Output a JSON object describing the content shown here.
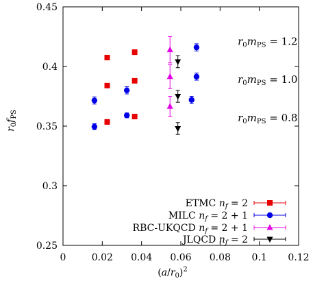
{
  "chart_data": {
    "type": "scatter",
    "xlabel": "(a/r₀)²",
    "ylabel": "r₀f_PS",
    "xlim": [
      0,
      0.12
    ],
    "ylim": [
      0.25,
      0.45
    ],
    "x_ticks": [
      0,
      0.02,
      0.04,
      0.06,
      0.08,
      0.1,
      0.12
    ],
    "x_tick_labels": [
      "0",
      "0.02",
      "0.04",
      "0.06",
      "0.08",
      "0.1",
      "0.12"
    ],
    "y_ticks": [
      0.25,
      0.3,
      0.35,
      0.4,
      0.45
    ],
    "y_tick_labels": [
      "0.25",
      "0.3",
      "0.35",
      "0.4",
      "0.45"
    ],
    "grid": false,
    "legend_position": "bottom-right",
    "annotations": [
      {
        "text": "r₀m_PS = 1.2",
        "x": 0.089,
        "y": 0.421
      },
      {
        "text": "r₀m_PS = 1.0",
        "x": 0.089,
        "y": 0.389
      },
      {
        "text": "r₀m_PS = 0.8",
        "x": 0.089,
        "y": 0.357
      }
    ],
    "series": [
      {
        "name": "ETMC n_f = 2",
        "color": "#e60000",
        "marker": "square",
        "points": [
          {
            "x": 0.0225,
            "y": 0.4075,
            "err": 0.0015
          },
          {
            "x": 0.0225,
            "y": 0.384,
            "err": 0.0015
          },
          {
            "x": 0.0225,
            "y": 0.3535,
            "err": 0.002
          },
          {
            "x": 0.0365,
            "y": 0.412,
            "err": 0.002
          },
          {
            "x": 0.0365,
            "y": 0.388,
            "err": 0.0015
          },
          {
            "x": 0.0365,
            "y": 0.358,
            "err": 0.0015
          }
        ]
      },
      {
        "name": "MILC n_f = 2 + 1",
        "color": "#0000e6",
        "marker": "circle",
        "points": [
          {
            "x": 0.016,
            "y": 0.3715,
            "err": 0.003
          },
          {
            "x": 0.016,
            "y": 0.3495,
            "err": 0.0025
          },
          {
            "x": 0.0325,
            "y": 0.38,
            "err": 0.003
          },
          {
            "x": 0.0325,
            "y": 0.359,
            "err": 0.002
          },
          {
            "x": 0.068,
            "y": 0.416,
            "err": 0.003
          },
          {
            "x": 0.068,
            "y": 0.3915,
            "err": 0.003
          },
          {
            "x": 0.0655,
            "y": 0.372,
            "err": 0.003
          }
        ]
      },
      {
        "name": "RBC-UKQCD n_f = 2 + 1",
        "color": "#e600e6",
        "marker": "triangle-up",
        "points": [
          {
            "x": 0.0545,
            "y": 0.414,
            "err": 0.011
          },
          {
            "x": 0.0545,
            "y": 0.3915,
            "err": 0.01
          },
          {
            "x": 0.0545,
            "y": 0.3665,
            "err": 0.0085
          }
        ]
      },
      {
        "name": "JLQCD n_f = 2",
        "color": "#000000",
        "marker": "triangle-down",
        "points": [
          {
            "x": 0.0585,
            "y": 0.404,
            "err": 0.005
          },
          {
            "x": 0.0585,
            "y": 0.375,
            "err": 0.005
          },
          {
            "x": 0.0585,
            "y": 0.348,
            "err": 0.005
          }
        ]
      }
    ]
  }
}
